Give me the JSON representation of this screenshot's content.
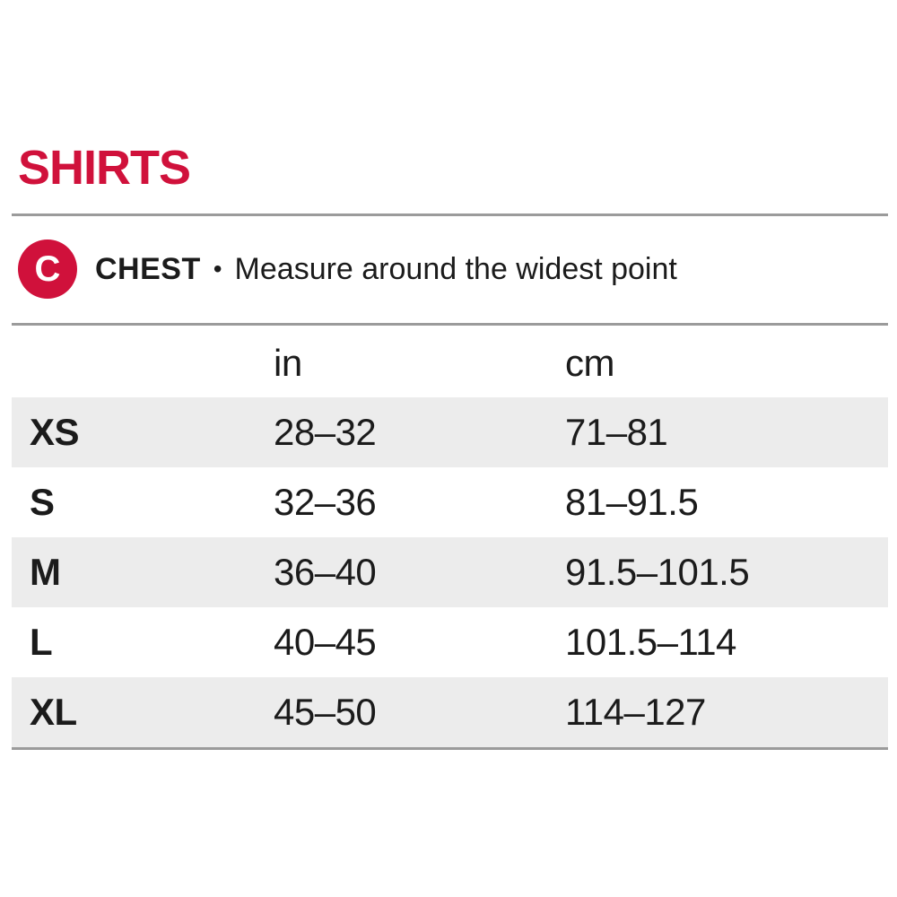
{
  "page": {
    "title": "SHIRTS"
  },
  "colors": {
    "accent": "#d0113b",
    "row_alt": "#ececec",
    "divider": "#9b9b9b"
  },
  "measure": {
    "badge_letter": "C",
    "label": "CHEST",
    "separator": "•",
    "description": "Measure around the widest point"
  },
  "chart_data": {
    "type": "table",
    "title": "SHIRTS",
    "columns": [
      "",
      "in",
      "cm"
    ],
    "rows": [
      {
        "size": "XS",
        "in": "28–32",
        "cm": "71–81"
      },
      {
        "size": "S",
        "in": "32–36",
        "cm": "81–91.5"
      },
      {
        "size": "M",
        "in": "36–40",
        "cm": "91.5–101.5"
      },
      {
        "size": "L",
        "in": "40–45",
        "cm": "101.5–114"
      },
      {
        "size": "XL",
        "in": "45–50",
        "cm": "114–127"
      }
    ]
  }
}
